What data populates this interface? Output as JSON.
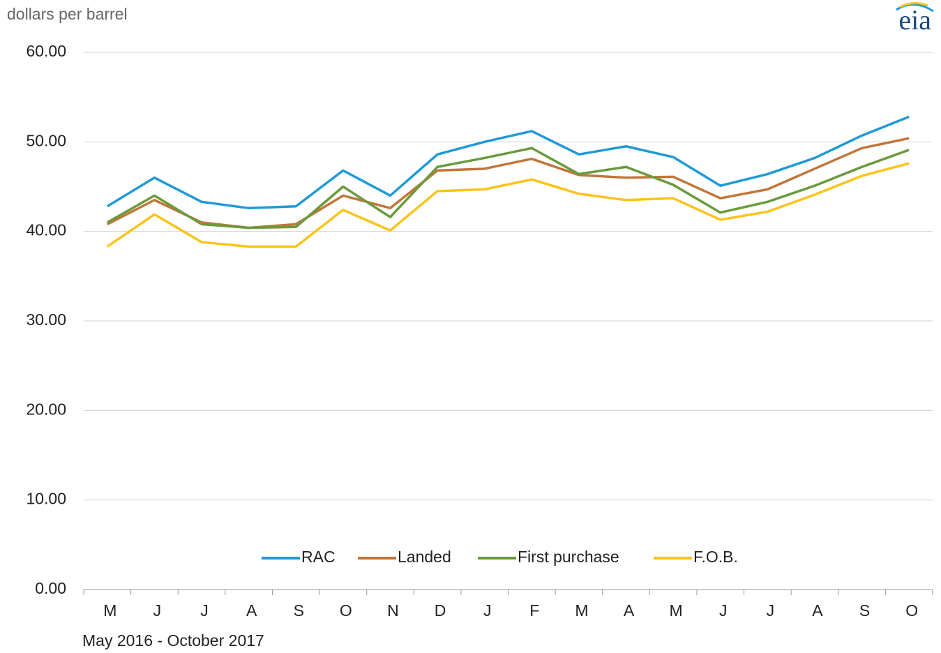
{
  "chart_data": {
    "type": "line",
    "y_label": "dollars per barrel",
    "x_label": "May 2016  -  October 2017",
    "logo": "eia",
    "categories": [
      "M",
      "J",
      "J",
      "A",
      "S",
      "O",
      "N",
      "D",
      "J",
      "F",
      "M",
      "A",
      "M",
      "J",
      "J",
      "A",
      "S",
      "O"
    ],
    "series": [
      {
        "name": "RAC",
        "color": "#1f9ad6",
        "values": [
          42.8,
          46.0,
          43.3,
          42.6,
          42.8,
          46.8,
          44.0,
          48.6,
          50.0,
          51.2,
          48.6,
          49.5,
          48.3,
          45.1,
          46.4,
          48.2,
          50.7,
          52.8
        ]
      },
      {
        "name": "Landed",
        "color": "#c0763a",
        "values": [
          40.8,
          43.5,
          41.0,
          40.4,
          40.8,
          44.0,
          42.6,
          46.8,
          47.0,
          48.1,
          46.3,
          46.0,
          46.1,
          43.7,
          44.7,
          47.0,
          49.3,
          50.4
        ]
      },
      {
        "name": "First purchase",
        "color": "#6a9a3c",
        "values": [
          41.0,
          44.0,
          40.8,
          40.4,
          40.5,
          45.0,
          41.6,
          47.2,
          48.2,
          49.3,
          46.4,
          47.2,
          45.2,
          42.1,
          43.3,
          45.1,
          47.2,
          49.1
        ]
      },
      {
        "name": "F.O.B.",
        "color": "#fcc31a",
        "values": [
          38.3,
          41.9,
          38.8,
          38.3,
          38.3,
          42.4,
          40.1,
          44.5,
          44.7,
          45.8,
          44.2,
          43.5,
          43.7,
          41.3,
          42.2,
          44.1,
          46.2,
          47.6
        ]
      }
    ],
    "ylim": [
      0,
      60
    ],
    "yticks": [
      {
        "value": 0,
        "label": "0.00"
      },
      {
        "value": 10,
        "label": "10.00"
      },
      {
        "value": 20,
        "label": "20.00"
      },
      {
        "value": 30,
        "label": "30.00"
      },
      {
        "value": 40,
        "label": "40.00"
      },
      {
        "value": 50,
        "label": "50.00"
      },
      {
        "value": 60,
        "label": "60.00"
      }
    ],
    "grid": true,
    "legend": "bottom"
  }
}
